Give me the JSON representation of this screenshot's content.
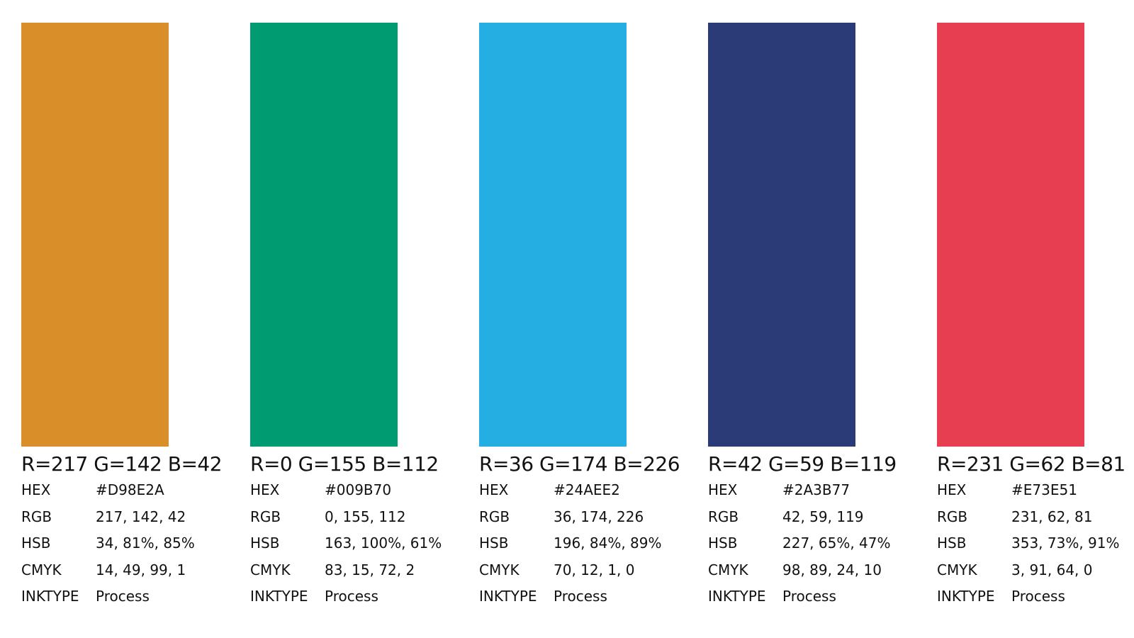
{
  "swatches": [
    {
      "title": "R=217 G=142 B=42",
      "rows": [
        [
          "HEX",
          "#D98E2A"
        ],
        [
          "RGB",
          "217, 142, 42"
        ],
        [
          "HSB",
          "34, 81%, 85%"
        ],
        [
          "CMYK",
          "14, 49, 99, 1"
        ],
        [
          "INKTYPE",
          "Process"
        ]
      ]
    },
    {
      "title": "R=0 G=155 B=112",
      "rows": [
        [
          "HEX",
          "#009B70"
        ],
        [
          "RGB",
          "0, 155, 112"
        ],
        [
          "HSB",
          "163, 100%, 61%"
        ],
        [
          "CMYK",
          "83, 15, 72, 2"
        ],
        [
          "INKTYPE",
          "Process"
        ]
      ]
    },
    {
      "title": "R=36 G=174 B=226",
      "rows": [
        [
          "HEX",
          "#24AEE2"
        ],
        [
          "RGB",
          "36, 174, 226"
        ],
        [
          "HSB",
          "196, 84%, 89%"
        ],
        [
          "CMYK",
          "70, 12, 1, 0"
        ],
        [
          "INKTYPE",
          "Process"
        ]
      ]
    },
    {
      "title": "R=42 G=59 B=119",
      "rows": [
        [
          "HEX",
          "#2A3B77"
        ],
        [
          "RGB",
          "42, 59, 119"
        ],
        [
          "HSB",
          "227, 65%, 47%"
        ],
        [
          "CMYK",
          "98, 89, 24, 10"
        ],
        [
          "INKTYPE",
          "Process"
        ]
      ]
    },
    {
      "title": "R=231 G=62 B=81",
      "rows": [
        [
          "HEX",
          "#E73E51"
        ],
        [
          "RGB",
          "231, 62, 81"
        ],
        [
          "HSB",
          "353, 73%, 91%"
        ],
        [
          "CMYK",
          "3, 91, 64, 0"
        ],
        [
          "INKTYPE",
          "Process"
        ]
      ]
    }
  ]
}
